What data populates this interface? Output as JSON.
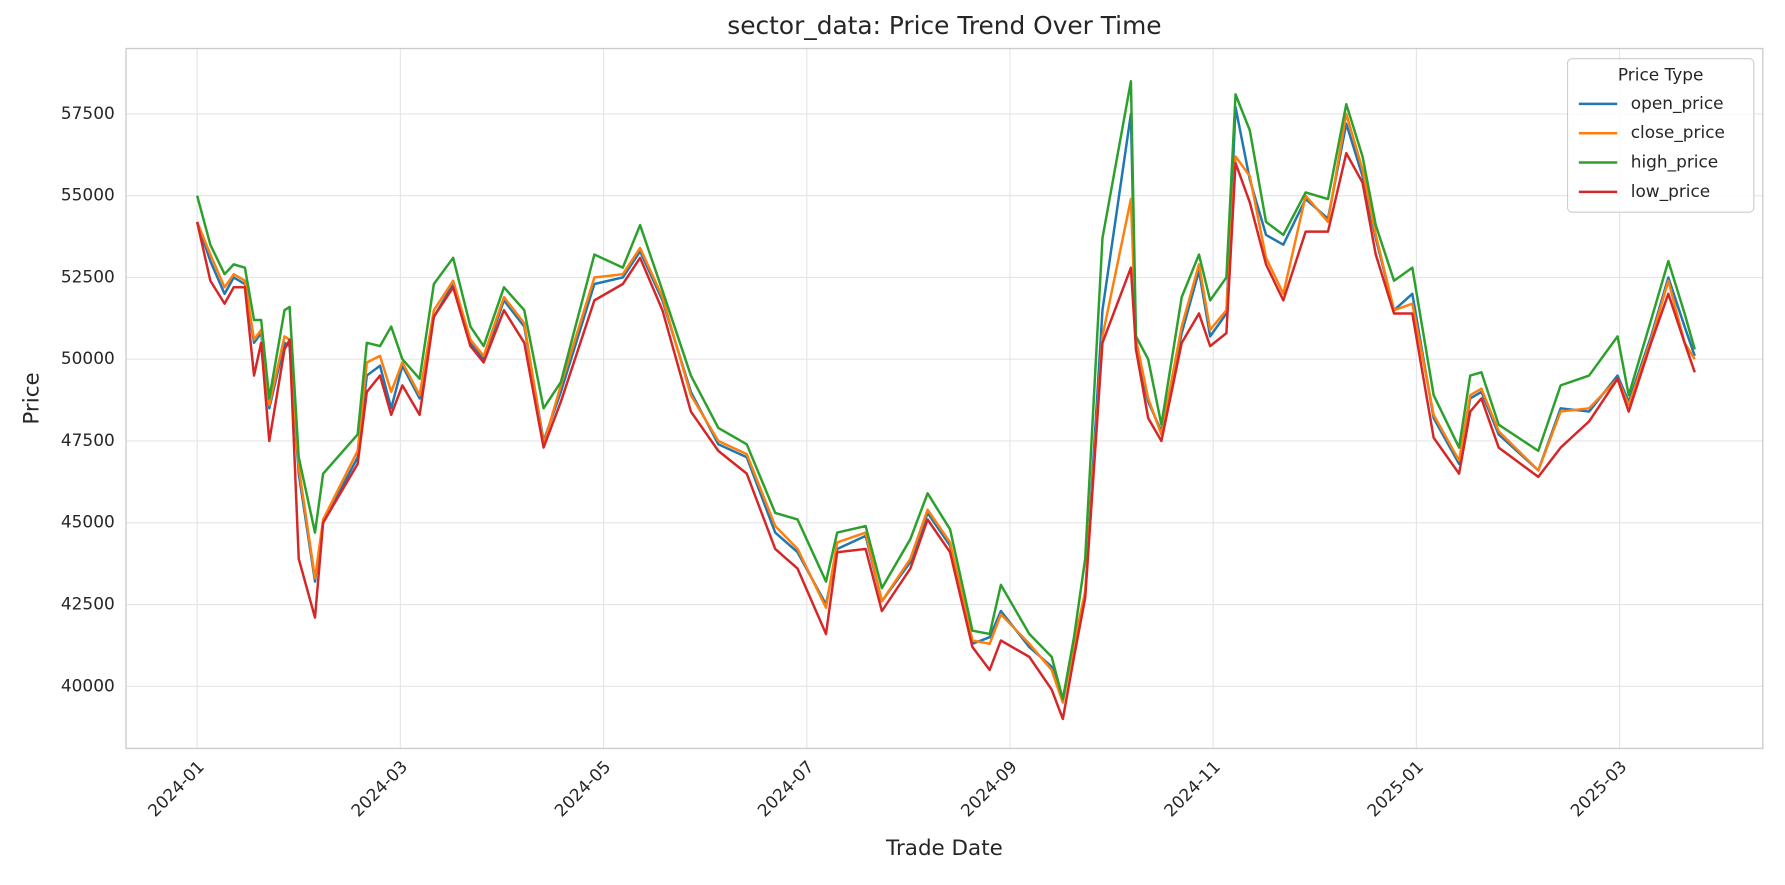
{
  "chart_data": {
    "type": "line",
    "title": "sector_data: Price Trend Over Time",
    "x_label": "Trade Date",
    "y_label": "Price",
    "legend_title": "Price Type",
    "legend_position": "upper right",
    "grid": true,
    "xlim": [
      -0.7,
      15.41
    ],
    "ylim": [
      38100,
      59500
    ],
    "xticks": [
      {
        "value": 0,
        "label": "2024-01"
      },
      {
        "value": 2,
        "label": "2024-03"
      },
      {
        "value": 4,
        "label": "2024-05"
      },
      {
        "value": 6,
        "label": "2024-07"
      },
      {
        "value": 8,
        "label": "2024-09"
      },
      {
        "value": 10,
        "label": "2024-11"
      },
      {
        "value": 12,
        "label": "2025-01"
      },
      {
        "value": 14,
        "label": "2025-03"
      }
    ],
    "yticks": [
      40000,
      42500,
      45000,
      47500,
      50000,
      52500,
      55000,
      57500
    ],
    "x": [
      0.0,
      0.13,
      0.27,
      0.36,
      0.47,
      0.56,
      0.63,
      0.71,
      0.86,
      0.91,
      1.0,
      1.16,
      1.24,
      1.58,
      1.67,
      1.8,
      1.91,
      2.02,
      2.19,
      2.33,
      2.52,
      2.69,
      2.82,
      3.02,
      3.22,
      3.41,
      3.58,
      3.91,
      4.19,
      4.36,
      4.58,
      4.86,
      5.13,
      5.41,
      5.69,
      5.91,
      6.19,
      6.3,
      6.58,
      6.74,
      7.02,
      7.19,
      7.41,
      7.63,
      7.8,
      7.91,
      8.19,
      8.41,
      8.52,
      8.63,
      8.74,
      8.91,
      9.19,
      9.24,
      9.36,
      9.49,
      9.69,
      9.86,
      9.97,
      10.13,
      10.22,
      10.36,
      10.52,
      10.69,
      10.91,
      11.13,
      11.31,
      11.47,
      11.6,
      11.78,
      11.96,
      12.17,
      12.42,
      12.53,
      12.64,
      12.81,
      13.2,
      13.42,
      13.7,
      13.98,
      14.09,
      14.31,
      14.48,
      14.64,
      14.74
    ],
    "series": [
      {
        "name": "open_price",
        "color": "#1f77b4",
        "values": [
          54200,
          53000,
          52000,
          52500,
          52300,
          50500,
          50800,
          48500,
          50500,
          50400,
          46500,
          43200,
          45000,
          47000,
          49500,
          49800,
          48500,
          49800,
          48800,
          51300,
          52300,
          50500,
          50000,
          51800,
          51000,
          47500,
          49000,
          52300,
          52500,
          53300,
          51800,
          49000,
          47400,
          47000,
          44700,
          44100,
          42500,
          44200,
          44600,
          42600,
          43800,
          45300,
          44300,
          41300,
          41500,
          42300,
          41200,
          40600,
          39600,
          41300,
          42800,
          51500,
          57500,
          50300,
          48700,
          47800,
          50800,
          52700,
          50700,
          51400,
          57700,
          55500,
          53800,
          53500,
          54900,
          54300,
          57200,
          55600,
          53700,
          51500,
          52000,
          48200,
          46800,
          48800,
          49000,
          47700,
          46600,
          48500,
          48400,
          49500,
          48700,
          50700,
          52500,
          51000,
          50100
        ]
      },
      {
        "name": "close_price",
        "color": "#ff7f0e",
        "values": [
          54200,
          53200,
          52200,
          52600,
          52400,
          50600,
          50900,
          48600,
          50700,
          50600,
          46700,
          43300,
          45100,
          47200,
          49900,
          50100,
          49000,
          49900,
          48900,
          51500,
          52400,
          50600,
          50100,
          51900,
          51100,
          47400,
          49200,
          52500,
          52600,
          53400,
          51900,
          48900,
          47500,
          47100,
          44900,
          44200,
          42400,
          44400,
          44700,
          42600,
          43900,
          45400,
          44400,
          41400,
          41300,
          42200,
          41300,
          40500,
          39500,
          41300,
          42900,
          50700,
          54900,
          50600,
          48800,
          47700,
          51000,
          52900,
          50900,
          51500,
          56200,
          55600,
          53100,
          52000,
          55000,
          54200,
          57500,
          55800,
          53800,
          51500,
          51700,
          48300,
          46900,
          48900,
          49100,
          47800,
          46600,
          48400,
          48500,
          49400,
          48600,
          50600,
          52400,
          50500,
          50000
        ]
      },
      {
        "name": "high_price",
        "color": "#2ca02c",
        "values": [
          55000,
          53500,
          52600,
          52900,
          52800,
          51200,
          51200,
          48800,
          51500,
          51600,
          47000,
          44700,
          46500,
          47700,
          50500,
          50400,
          51000,
          50000,
          49400,
          52300,
          53100,
          51000,
          50400,
          52200,
          51500,
          48500,
          49300,
          53200,
          52800,
          54100,
          52100,
          49500,
          47900,
          47400,
          45300,
          45100,
          43200,
          44700,
          44900,
          43000,
          44500,
          45900,
          44800,
          41700,
          41600,
          43100,
          41600,
          40900,
          39600,
          41500,
          43900,
          53700,
          58500,
          50700,
          50000,
          48000,
          51900,
          53200,
          51800,
          52500,
          58100,
          57000,
          54200,
          53800,
          55100,
          54900,
          57800,
          56200,
          54100,
          52400,
          52800,
          48900,
          47300,
          49500,
          49600,
          48000,
          47200,
          49200,
          49500,
          50700,
          48900,
          51200,
          53000,
          51400,
          50300
        ]
      },
      {
        "name": "low_price",
        "color": "#d62728",
        "values": [
          54200,
          52400,
          51700,
          52200,
          52200,
          49500,
          50500,
          47500,
          50300,
          50600,
          43900,
          42100,
          45000,
          46800,
          49000,
          49500,
          48300,
          49200,
          48300,
          51300,
          52200,
          50400,
          49900,
          51500,
          50500,
          47300,
          48700,
          51800,
          52300,
          53100,
          51500,
          48400,
          47200,
          46500,
          44200,
          43600,
          41600,
          44100,
          44200,
          42300,
          43600,
          45100,
          44100,
          41200,
          40500,
          41400,
          40900,
          39900,
          39000,
          40900,
          42700,
          50500,
          52800,
          50300,
          48200,
          47500,
          50500,
          51400,
          50400,
          50800,
          56000,
          54800,
          52900,
          51800,
          53900,
          53900,
          56300,
          55400,
          53200,
          51400,
          51400,
          47600,
          46500,
          48400,
          48800,
          47300,
          46400,
          47300,
          48100,
          49400,
          48400,
          50500,
          52000,
          50500,
          49600
        ]
      }
    ]
  }
}
